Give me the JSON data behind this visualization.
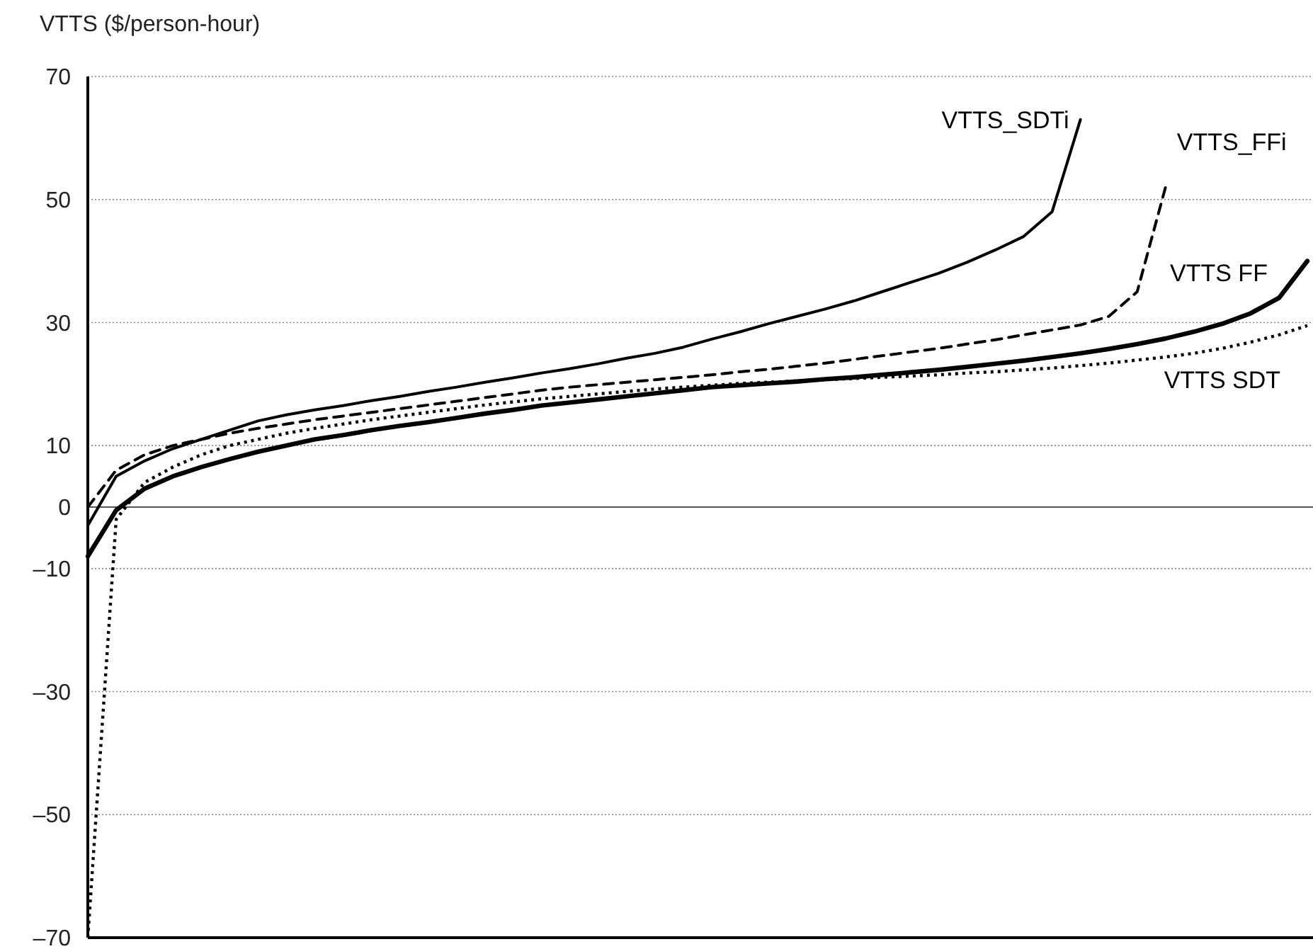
{
  "chart_data": {
    "type": "line",
    "ylabel": "VTTS ($/person-hour)",
    "categories": [
      null,
      null,
      null,
      null,
      null,
      null,
      null,
      null,
      null,
      null,
      null,
      null,
      null,
      null,
      null,
      null,
      null,
      null,
      null,
      null,
      null,
      null,
      null,
      null,
      null,
      null,
      null,
      null,
      null,
      null,
      null,
      null,
      null,
      null,
      null,
      null,
      null,
      null,
      null,
      null,
      null,
      null,
      null,
      null
    ],
    "ylim": [
      -70,
      70
    ],
    "yticks": [
      70,
      50,
      30,
      10,
      0,
      {
        "value": -10,
        "label": "–10"
      },
      {
        "value": -30,
        "label": "–30"
      },
      {
        "value": -50,
        "label": "–50"
      },
      {
        "value": -70,
        "label": "–70"
      }
    ],
    "grid": "y",
    "tick_labels": "y",
    "marker": "none",
    "series": [
      {
        "name": "VTTS_SDTi",
        "color": "#000000",
        "line_style": "solid",
        "values": [
          -3,
          5,
          7.5,
          9.5,
          11,
          12.5,
          14,
          15,
          15.8,
          16.5,
          17.3,
          18,
          18.8,
          19.5,
          20.3,
          21,
          21.8,
          22.5,
          23.3,
          24.2,
          25,
          26,
          27.3,
          28.5,
          29.8,
          31,
          32.2,
          33.5,
          35,
          36.5,
          38,
          39.8,
          41.8,
          44,
          48,
          63,
          null,
          null,
          null,
          null,
          null,
          null,
          null,
          null
        ]
      },
      {
        "name": "VTTS_FFi",
        "color": "#000000",
        "line_style": "dashed",
        "values": [
          0,
          6,
          8.5,
          10,
          11,
          12,
          12.8,
          13.5,
          14.2,
          14.8,
          15.4,
          16,
          16.6,
          17.2,
          17.8,
          18.4,
          19,
          19.5,
          19.9,
          20.3,
          20.7,
          21.1,
          21.5,
          22,
          22.4,
          22.9,
          23.4,
          24,
          24.6,
          25.2,
          25.8,
          26.5,
          27.2,
          28,
          28.8,
          29.6,
          31,
          35,
          52,
          null,
          null,
          null,
          null,
          null
        ]
      },
      {
        "name": "VTTS FF",
        "color": "#000000",
        "line_style": "solid",
        "values": [
          -8,
          -0.5,
          3,
          5,
          6.5,
          7.8,
          9,
          10,
          11,
          11.7,
          12.5,
          13.2,
          13.8,
          14.5,
          15.2,
          15.8,
          16.5,
          17,
          17.5,
          18,
          18.5,
          19,
          19.5,
          19.8,
          20.1,
          20.4,
          20.8,
          21.1,
          21.5,
          21.9,
          22.3,
          22.8,
          23.3,
          23.8,
          24.4,
          25,
          25.7,
          26.5,
          27.4,
          28.5,
          29.8,
          31.5,
          34,
          40
        ]
      },
      {
        "name": "VTTS SDT",
        "color": "#000000",
        "line_style": "dotted",
        "values": [
          -70,
          -2,
          4,
          6.5,
          8.5,
          10,
          11,
          12,
          12.8,
          13.5,
          14.2,
          14.8,
          15.4,
          16,
          16.6,
          17.1,
          17.6,
          18,
          18.4,
          18.8,
          19.2,
          19.5,
          19.8,
          20.1,
          20.3,
          20.5,
          20.7,
          20.9,
          21.1,
          21.3,
          21.5,
          21.8,
          22,
          22.3,
          22.6,
          23,
          23.4,
          23.9,
          24.4,
          25,
          25.8,
          26.8,
          28,
          29.5
        ]
      }
    ]
  }
}
